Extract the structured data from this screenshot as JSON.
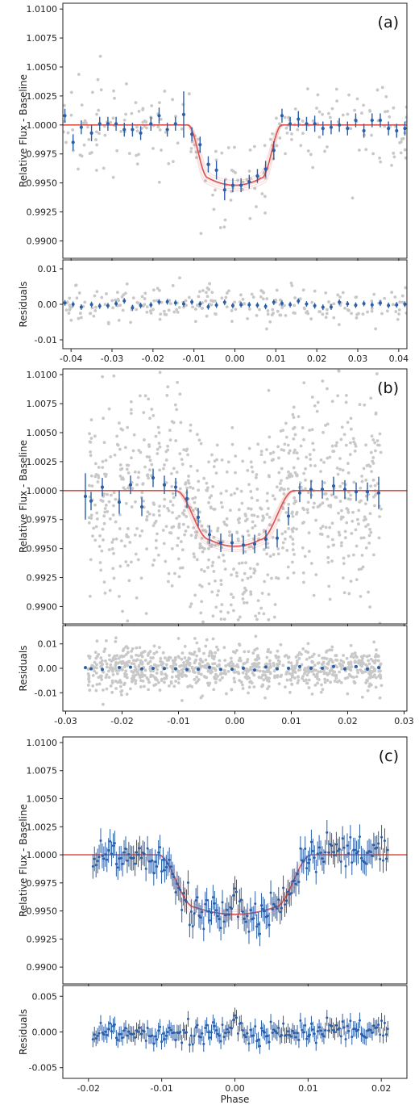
{
  "chart_data": [
    {
      "type": "scatter",
      "panel_label": "(a)",
      "xlim": [
        -0.042,
        0.042
      ],
      "x_ticks": [
        -0.04,
        -0.03,
        -0.02,
        -0.01,
        0.0,
        0.01,
        0.02,
        0.03,
        0.04
      ],
      "x_tick_labels": [
        "-0.04",
        "-0.03",
        "-0.02",
        "-0.01",
        "0.00",
        "0.01",
        "0.02",
        "0.03",
        "0.04"
      ],
      "flux": {
        "ylabel": "Relative Flux - Baseline",
        "ylim": [
          0.9885,
          1.0105
        ],
        "y_ticks": [
          0.99,
          0.9925,
          0.995,
          0.9975,
          1.0,
          1.0025,
          1.005,
          1.0075,
          1.01
        ],
        "y_tick_labels": [
          "0.9900",
          "0.9925",
          "0.9950",
          "0.9975",
          "1.0000",
          "1.0025",
          "1.0050",
          "1.0075",
          "1.0100"
        ],
        "model": {
          "depth": 0.0052,
          "t1": 0.0115,
          "t2": 0.0065,
          "color": "#d9534f"
        },
        "raw_points": {
          "color": "#c8c8c8",
          "count": 230,
          "scatter": 0.0018
        },
        "binned": {
          "color": "#2b5ea7",
          "x": [
            -0.0415,
            -0.0395,
            -0.0375,
            -0.035,
            -0.033,
            -0.031,
            -0.029,
            -0.027,
            -0.025,
            -0.023,
            -0.0205,
            -0.0185,
            -0.0165,
            -0.0145,
            -0.0125,
            -0.0105,
            -0.0085,
            -0.0065,
            -0.0045,
            -0.0025,
            -0.0005,
            0.0015,
            0.0035,
            0.0055,
            0.0075,
            0.0095,
            0.0115,
            0.0135,
            0.0155,
            0.0175,
            0.0195,
            0.0215,
            0.0235,
            0.0255,
            0.0275,
            0.0295,
            0.0315,
            0.0335,
            0.0355,
            0.0375,
            0.0395,
            0.0415
          ],
          "y": [
            1.0008,
            0.9985,
            0.9998,
            0.9993,
            1.0001,
            1.0001,
            1.0001,
            0.9996,
            0.9996,
            0.9993,
            1.0001,
            1.0008,
            0.9996,
            1.0001,
            1.0009,
            0.9992,
            0.9983,
            0.9966,
            0.9961,
            0.9944,
            0.9948,
            0.9948,
            0.9951,
            0.9956,
            0.9962,
            0.9978,
            1.0008,
            1.0001,
            1.0005,
            1.0001,
            1.0001,
            0.9997,
            0.9998,
            1.0,
            0.9997,
            1.0004,
            0.9995,
            1.0004,
            1.0004,
            0.9997,
            0.9995,
            0.9997
          ],
          "err": [
            0.0006,
            0.0007,
            0.0006,
            0.0007,
            0.0006,
            0.0006,
            0.0006,
            0.0006,
            0.0006,
            0.0006,
            0.0006,
            0.0007,
            0.0006,
            0.0006,
            0.002,
            0.0006,
            0.0007,
            0.0007,
            0.0008,
            0.0009,
            0.0006,
            0.0006,
            0.0006,
            0.0006,
            0.0007,
            0.0008,
            0.0006,
            0.0006,
            0.0007,
            0.0006,
            0.0007,
            0.0006,
            0.0006,
            0.0006,
            0.0006,
            0.0006,
            0.0006,
            0.0006,
            0.0006,
            0.0006,
            0.0006,
            0.0006
          ]
        }
      },
      "residuals": {
        "ylabel": "Residuals",
        "ylim": [
          -0.0125,
          0.0125
        ],
        "y_ticks": [
          -0.01,
          0.0,
          0.01
        ],
        "y_tick_labels": [
          "-0.01",
          "0.00",
          "0.01"
        ],
        "raw_scatter": 0.0025,
        "binned_scatter": 0.0008
      }
    },
    {
      "type": "scatter",
      "panel_label": "(b)",
      "xlim": [
        -0.0305,
        0.0305
      ],
      "x_ticks": [
        -0.03,
        -0.02,
        -0.01,
        0.0,
        0.01,
        0.02,
        0.03
      ],
      "x_tick_labels": [
        "-0.03",
        "-0.02",
        "-0.01",
        "0.00",
        "0.01",
        "0.02",
        "0.03"
      ],
      "data_range": [
        -0.026,
        0.026
      ],
      "flux": {
        "ylabel": "Relative Flux - Baseline",
        "ylim": [
          0.9885,
          1.0105
        ],
        "y_ticks": [
          0.99,
          0.9925,
          0.995,
          0.9975,
          1.0,
          1.0025,
          1.005,
          1.0075,
          1.01
        ],
        "y_tick_labels": [
          "0.9900",
          "0.9925",
          "0.9950",
          "0.9975",
          "1.0000",
          "1.0025",
          "1.0050",
          "1.0075",
          "1.0100"
        ],
        "model": {
          "depth": 0.0048,
          "t1": 0.0105,
          "t2": 0.0045,
          "color": "#d9534f"
        },
        "raw_points": {
          "color": "#c8c8c8",
          "count": 900,
          "scatter": 0.0048
        },
        "binned": {
          "color": "#2b5ea7",
          "x": [
            -0.0265,
            -0.0255,
            -0.0235,
            -0.0205,
            -0.0185,
            -0.0165,
            -0.0145,
            -0.0125,
            -0.0105,
            -0.0085,
            -0.0065,
            -0.0045,
            -0.0025,
            -0.0005,
            0.0015,
            0.0035,
            0.0055,
            0.0075,
            0.0095,
            0.0115,
            0.0135,
            0.0155,
            0.0175,
            0.0195,
            0.0215,
            0.0235,
            0.0255
          ],
          "y": [
            0.9995,
            0.9991,
            1.0003,
            0.999,
            1.0005,
            0.9986,
            1.0011,
            1.0005,
            1.0003,
            0.9993,
            0.9977,
            0.9962,
            0.9955,
            0.9955,
            0.9953,
            0.9954,
            0.9958,
            0.9959,
            0.9978,
            0.9998,
            1.0001,
            1.0001,
            1.0004,
            1.0001,
            0.9999,
            0.9999,
            0.9998
          ],
          "err": [
            0.002,
            0.0008,
            0.0008,
            0.001,
            0.0008,
            0.0008,
            0.0008,
            0.0008,
            0.0008,
            0.0008,
            0.0008,
            0.0008,
            0.0008,
            0.0008,
            0.0008,
            0.0008,
            0.0008,
            0.0008,
            0.0008,
            0.0008,
            0.0008,
            0.0008,
            0.0008,
            0.0008,
            0.0008,
            0.0008,
            0.0014
          ]
        }
      },
      "residuals": {
        "ylabel": "Residuals",
        "ylim": [
          -0.0175,
          0.0175
        ],
        "y_ticks": [
          -0.01,
          0.0,
          0.01
        ],
        "y_tick_labels": [
          "-0.01",
          "0.00",
          "0.01"
        ],
        "raw_scatter": 0.0045,
        "binned_scatter": 0.0006
      }
    },
    {
      "type": "scatter",
      "panel_label": "(c)",
      "xlim": [
        -0.0235,
        0.0235
      ],
      "x_ticks": [
        -0.02,
        -0.01,
        0.0,
        0.01,
        0.02
      ],
      "x_tick_labels": [
        "-0.02",
        "-0.01",
        "0.00",
        "0.01",
        "0.02"
      ],
      "xlabel": "Phase",
      "data_range": [
        -0.0195,
        0.021
      ],
      "flux": {
        "ylabel": "Relative Flux - Baseline",
        "ylim": [
          0.9885,
          1.0105
        ],
        "y_ticks": [
          0.99,
          0.9925,
          0.995,
          0.9975,
          1.0,
          1.0025,
          1.005,
          1.0075,
          1.01
        ],
        "y_tick_labels": [
          "0.9900",
          "0.9925",
          "0.9950",
          "0.9975",
          "1.0000",
          "1.0025",
          "1.0050",
          "1.0075",
          "1.0100"
        ],
        "model": {
          "depth": 0.0053,
          "t1": 0.0105,
          "t2": 0.0055,
          "color": "#d9534f"
        },
        "points": {
          "color": "#2b5ea7",
          "count": 190,
          "scatter": 0.0009,
          "err": 0.0011
        }
      },
      "residuals": {
        "ylabel": "Residuals",
        "ylim": [
          -0.0065,
          0.0065
        ],
        "y_ticks": [
          -0.005,
          0.0,
          0.005
        ],
        "y_tick_labels": [
          "-0.005",
          "0.000",
          "0.005"
        ],
        "scatter": 0.0009,
        "err": 0.0011
      }
    }
  ]
}
